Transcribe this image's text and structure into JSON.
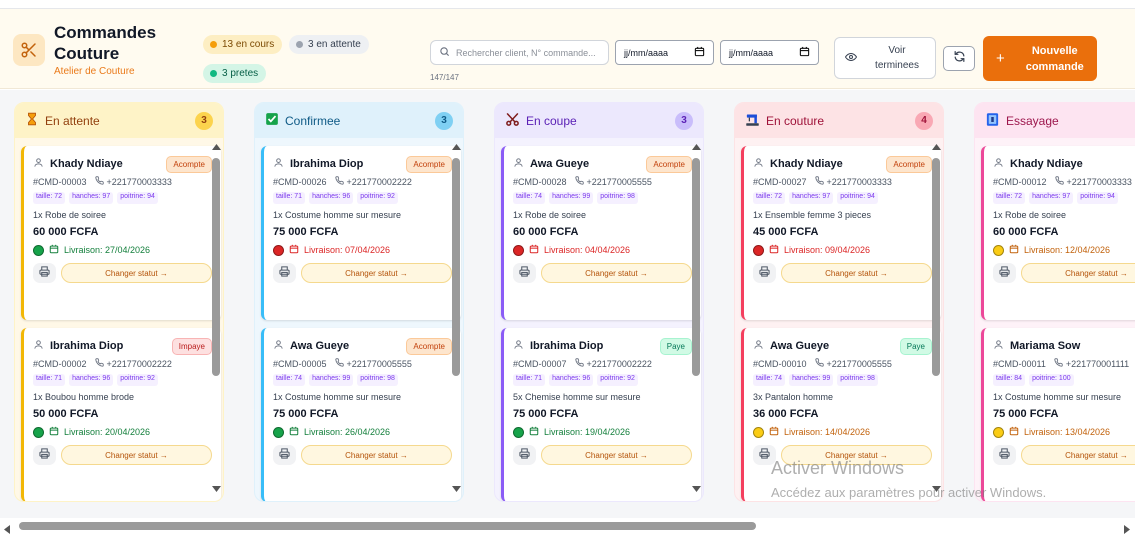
{
  "header": {
    "title": "Commandes Couture",
    "subtitle": "Atelier de Couture",
    "pills": {
      "in_progress": "13 en cours",
      "waiting": "3 en attente",
      "ready": "3 pretes"
    },
    "search_placeholder": "Rechercher client, N° commande...",
    "result_count": "147/147",
    "date_from": "jj/mm/aaaa",
    "date_to": "jj/mm/aaaa",
    "view_done_label": "Voir terminees",
    "new_order_label": "Nouvelle commande"
  },
  "columns": [
    {
      "name": "En attente",
      "count": "3",
      "icon": "hourglass-icon",
      "head_bg": "#fef3c7",
      "head_color": "#92400e",
      "badge_bg": "#fcd34d",
      "body_bg": "#fff8e7",
      "accent": "#f2b705",
      "cards": [
        {
          "client": "Khady Ndiaye",
          "status": "Acompte",
          "status_type": "acompte",
          "ref": "#CMD-00003",
          "phone": "+221770003333",
          "tags": [
            "taille: 72",
            "hanches: 97",
            "poitrine: 94"
          ],
          "item": "1x Robe de soiree",
          "price": "60 000 FCFA",
          "delivery": "Livraison: 27/04/2026",
          "dot": "green",
          "change": "Changer statut →"
        },
        {
          "client": "Ibrahima Diop",
          "status": "Impaye",
          "status_type": "impaye",
          "ref": "#CMD-00002",
          "phone": "+221770002222",
          "tags": [
            "taille: 71",
            "hanches: 96",
            "poitrine: 92"
          ],
          "item": "1x Boubou homme brode",
          "price": "50 000 FCFA",
          "delivery": "Livraison: 20/04/2026",
          "dot": "green",
          "change": "Changer statut →"
        }
      ]
    },
    {
      "name": "Confirmee",
      "count": "3",
      "icon": "check-box-icon",
      "head_bg": "#dff1fb",
      "head_color": "#0e5a86",
      "badge_bg": "#7fd0f3",
      "body_bg": "#eef7fd",
      "accent": "#38bdf8",
      "cards": [
        {
          "client": "Ibrahima Diop",
          "status": "Acompte",
          "status_type": "acompte",
          "ref": "#CMD-00026",
          "phone": "+221770002222",
          "tags": [
            "taille: 71",
            "hanches: 96",
            "poitrine: 92"
          ],
          "item": "1x Costume homme sur mesure",
          "price": "75 000 FCFA",
          "delivery": "Livraison: 07/04/2026",
          "dot": "red",
          "change": "Changer statut →"
        },
        {
          "client": "Awa Gueye",
          "status": "Acompte",
          "status_type": "acompte",
          "ref": "#CMD-00005",
          "phone": "+221770005555",
          "tags": [
            "taille: 74",
            "hanches: 99",
            "poitrine: 98"
          ],
          "item": "1x Costume homme sur mesure",
          "price": "75 000 FCFA",
          "delivery": "Livraison: 26/04/2026",
          "dot": "green",
          "change": "Changer statut →"
        }
      ]
    },
    {
      "name": "En coupe",
      "count": "3",
      "icon": "scissors-icon",
      "head_bg": "#ece8fd",
      "head_color": "#5b21b6",
      "badge_bg": "#c9bdfb",
      "body_bg": "#f4f2fe",
      "accent": "#8b5cf6",
      "cards": [
        {
          "client": "Awa Gueye",
          "status": "Acompte",
          "status_type": "acompte",
          "ref": "#CMD-00028",
          "phone": "+221770005555",
          "tags": [
            "taille: 74",
            "hanches: 99",
            "poitrine: 98"
          ],
          "item": "1x Robe de soiree",
          "price": "60 000 FCFA",
          "delivery": "Livraison: 04/04/2026",
          "dot": "red",
          "change": "Changer statut →"
        },
        {
          "client": "Ibrahima Diop",
          "status": "Paye",
          "status_type": "paye",
          "ref": "#CMD-00007",
          "phone": "+221770002222",
          "tags": [
            "taille: 71",
            "hanches: 96",
            "poitrine: 92"
          ],
          "item": "5x Chemise homme sur mesure",
          "price": "75 000 FCFA",
          "delivery": "Livraison: 19/04/2026",
          "dot": "green",
          "change": "Changer statut →"
        }
      ]
    },
    {
      "name": "En couture",
      "count": "4",
      "icon": "sewing-machine-icon",
      "head_bg": "#fde3e5",
      "head_color": "#9f1239",
      "badge_bg": "#f9a8b4",
      "body_bg": "#fef1f2",
      "accent": "#f43f5e",
      "cards": [
        {
          "client": "Khady Ndiaye",
          "status": "Acompte",
          "status_type": "acompte",
          "ref": "#CMD-00027",
          "phone": "+221770003333",
          "tags": [
            "taille: 72",
            "hanches: 97",
            "poitrine: 94"
          ],
          "item": "1x Ensemble femme 3 pieces",
          "price": "45 000 FCFA",
          "delivery": "Livraison: 09/04/2026",
          "dot": "red",
          "change": "Changer statut →"
        },
        {
          "client": "Awa Gueye",
          "status": "Paye",
          "status_type": "paye",
          "ref": "#CMD-00010",
          "phone": "+221770005555",
          "tags": [
            "taille: 74",
            "hanches: 99",
            "poitrine: 98"
          ],
          "item": "3x Pantalon homme",
          "price": "36 000 FCFA",
          "delivery": "Livraison: 14/04/2026",
          "dot": "yellow",
          "change": "Changer statut →"
        }
      ]
    },
    {
      "name": "Essayage",
      "count": "",
      "icon": "mirror-icon",
      "head_bg": "#fde4f1",
      "head_color": "#9d174d",
      "badge_bg": "#f9a8d4",
      "body_bg": "#fef2f8",
      "accent": "#ec4899",
      "cards": [
        {
          "client": "Khady Ndiaye",
          "status": "",
          "status_type": "acompte",
          "ref": "#CMD-00012",
          "phone": "+221770003333",
          "tags": [
            "taille: 72",
            "hanches: 97",
            "poitrine: 94"
          ],
          "item": "1x Robe de soiree",
          "price": "60 000 FCFA",
          "delivery": "Livraison: 12/04/2026",
          "dot": "yellow",
          "change": "Changer statut →"
        },
        {
          "client": "Mariama Sow",
          "status": "",
          "status_type": "acompte",
          "ref": "#CMD-00011",
          "phone": "+221770001111",
          "tags": [
            "taille: 84",
            "poitrine: 100"
          ],
          "item": "1x Costume homme sur mesure",
          "price": "75 000 FCFA",
          "delivery": "Livraison: 13/04/2026",
          "dot": "yellow",
          "change": "Changer statut →"
        }
      ]
    }
  ],
  "watermark": {
    "line1": "Activer Windows",
    "line2": "Accédez aux paramètres pour activer Windows."
  }
}
